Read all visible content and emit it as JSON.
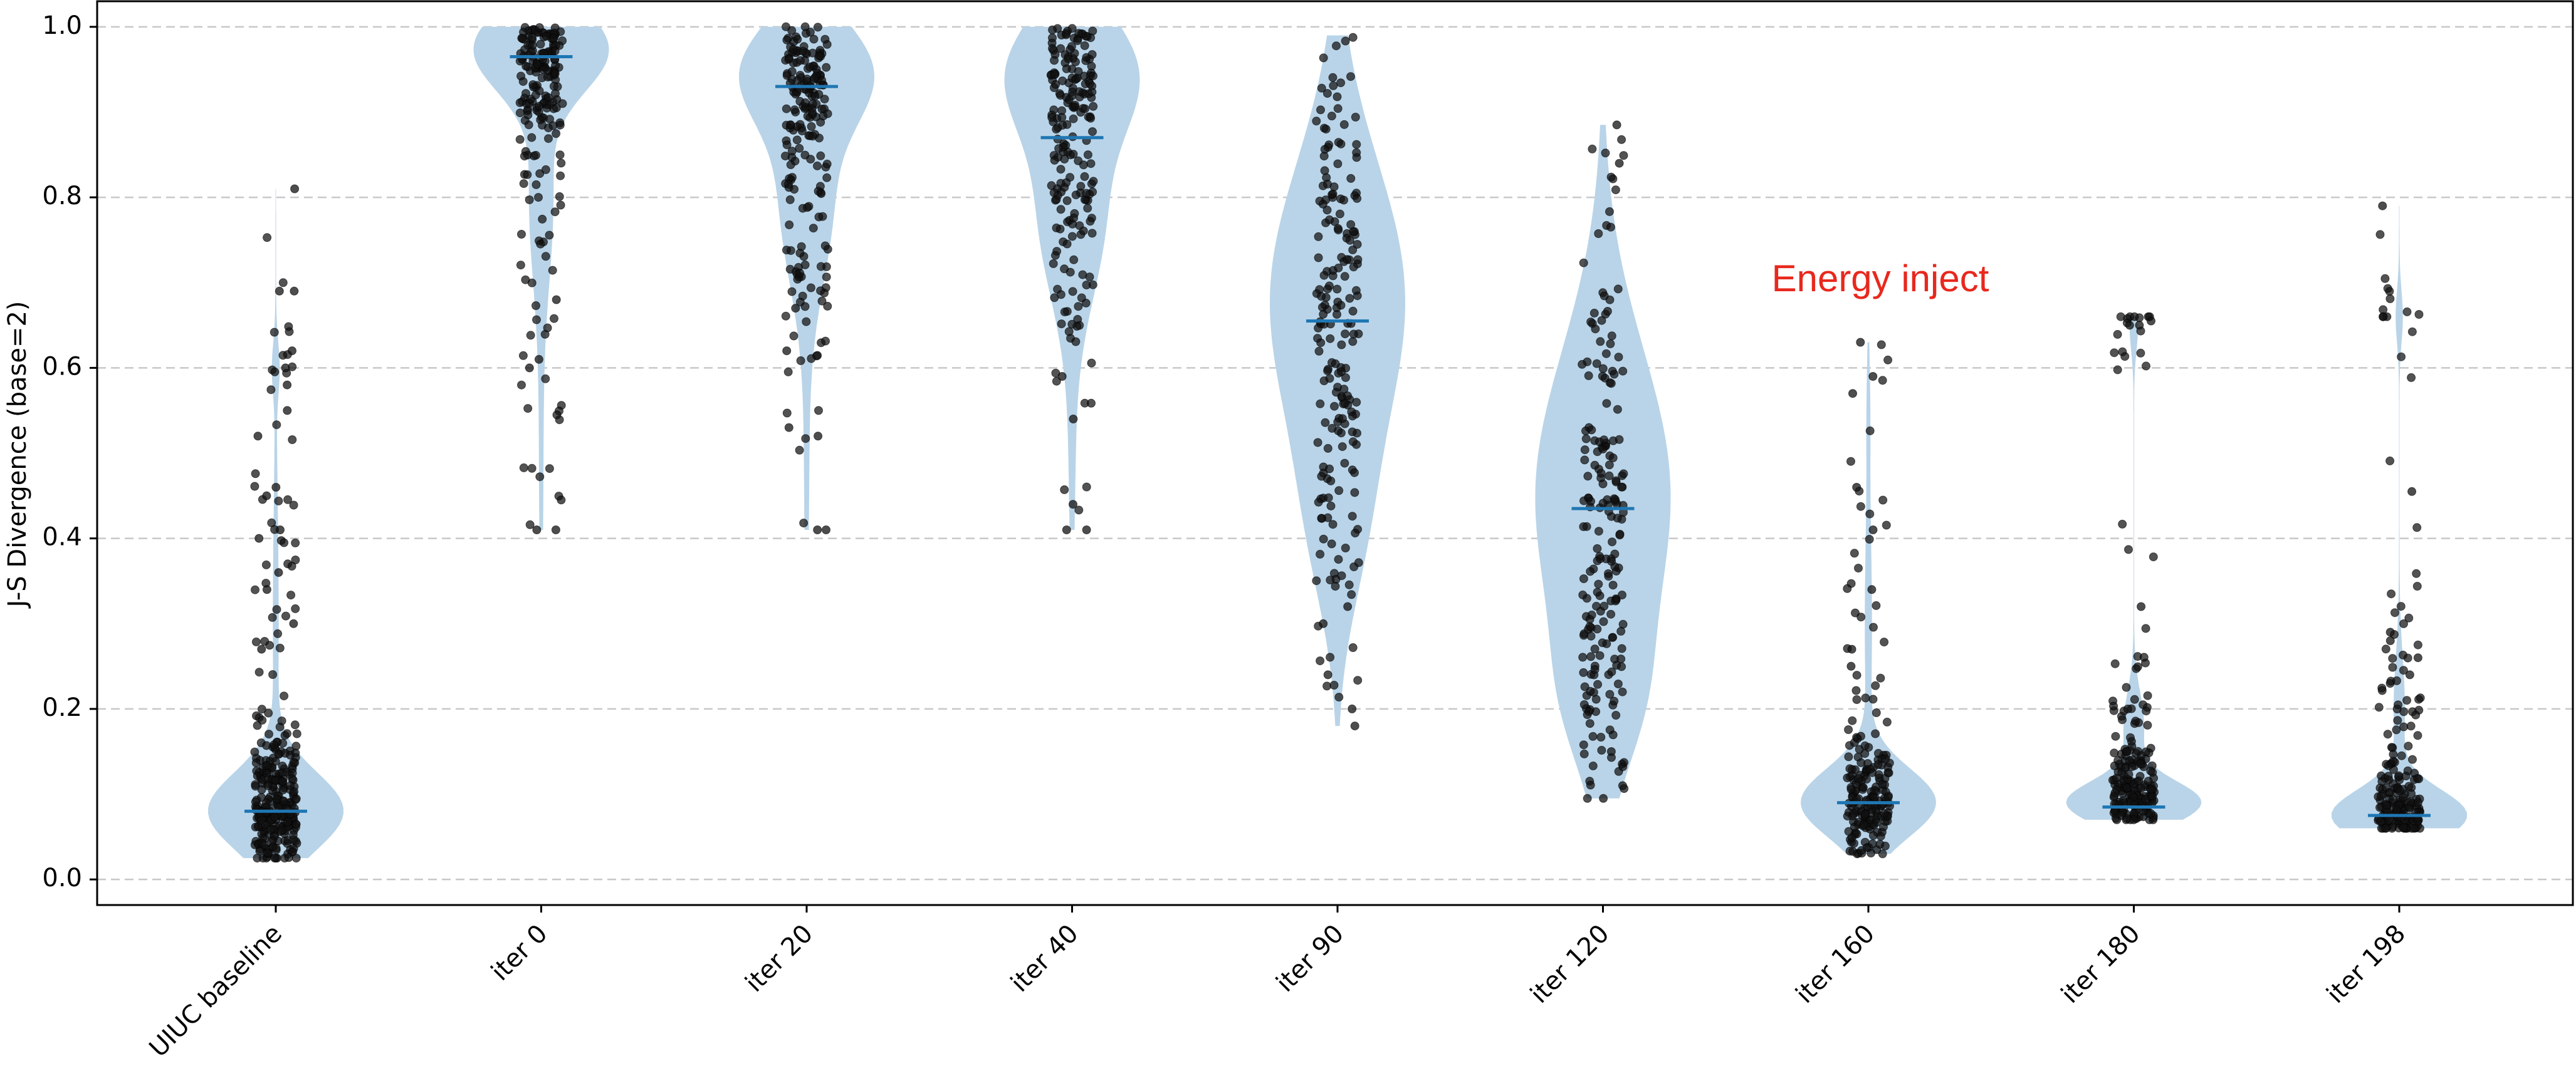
{
  "chart_data": {
    "type": "violin",
    "ylabel": "J-S Divergence (base=2)",
    "xlabel": "",
    "ylim": [
      -0.03,
      1.03
    ],
    "yticks": [
      "0.0",
      "0.2",
      "0.4",
      "0.6",
      "0.8",
      "1.0"
    ],
    "grid": "horizontal dashed",
    "annotation": {
      "text": "Energy inject",
      "y": 0.69,
      "color": "#e8281d"
    },
    "colors": {
      "violin": "#b9d4e8",
      "median": "#1f77b4",
      "points": "#111111",
      "grid": "#c8c8c8"
    },
    "categories": [
      "UIUC baseline",
      "iter 0",
      "iter 20",
      "iter 40",
      "iter 90",
      "iter 120",
      "iter 160",
      "iter 180",
      "iter 198"
    ],
    "series": [
      {
        "category": "UIUC baseline",
        "median": 0.08,
        "min": 0.025,
        "max": 0.81,
        "n_points": 300,
        "outliers": [
          0.81,
          0.69,
          0.69,
          0.62,
          0.6,
          0.58,
          0.55,
          0.52,
          0.46,
          0.45,
          0.41,
          0.4,
          0.36,
          0.34,
          0.3,
          0.27
        ]
      },
      {
        "category": "iter 0",
        "median": 0.965,
        "min": 0.41,
        "max": 1.0,
        "n_points": 200,
        "outliers": [
          0.41,
          0.41,
          0.6,
          0.61,
          0.68
        ]
      },
      {
        "category": "iter 20",
        "median": 0.93,
        "min": 0.41,
        "max": 1.0,
        "n_points": 200,
        "outliers": [
          0.41,
          0.41,
          0.52,
          0.53,
          0.62,
          0.67
        ]
      },
      {
        "category": "iter 40",
        "median": 0.87,
        "min": 0.41,
        "max": 1.0,
        "n_points": 200,
        "outliers": [
          0.41,
          0.41,
          0.44,
          0.54,
          0.59
        ]
      },
      {
        "category": "iter 90",
        "median": 0.655,
        "min": 0.18,
        "max": 0.99,
        "n_points": 200,
        "outliers": [
          0.18,
          0.2,
          0.24,
          0.3,
          0.32
        ]
      },
      {
        "category": "iter 120",
        "median": 0.435,
        "min": 0.095,
        "max": 0.885,
        "n_points": 200,
        "outliers": [
          0.095,
          0.11,
          0.15,
          0.84,
          0.885
        ]
      },
      {
        "category": "iter 160",
        "median": 0.09,
        "min": 0.03,
        "max": 0.63,
        "n_points": 200,
        "outliers": [
          0.63,
          0.59,
          0.57,
          0.46,
          0.41,
          0.34,
          0.27,
          0.25
        ]
      },
      {
        "category": "iter 180",
        "median": 0.085,
        "min": 0.07,
        "max": 0.66,
        "n_points": 200,
        "outliers": [
          0.66,
          0.66,
          0.655,
          0.65,
          0.65,
          0.32
        ]
      },
      {
        "category": "iter 198",
        "median": 0.075,
        "min": 0.06,
        "max": 0.79,
        "n_points": 200,
        "outliers": [
          0.79,
          0.66,
          0.66,
          0.66,
          0.455,
          0.29,
          0.28,
          0.26,
          0.24
        ]
      }
    ]
  }
}
